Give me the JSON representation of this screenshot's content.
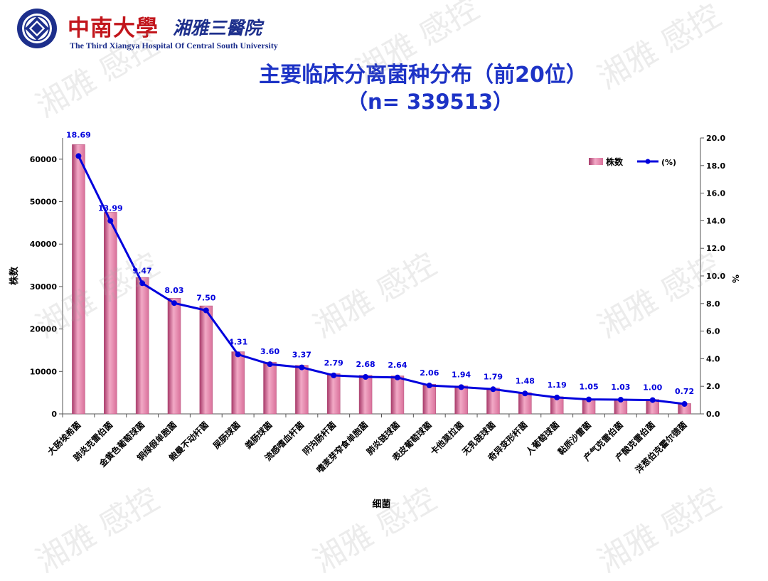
{
  "header": {
    "hospital_name_cn": "中南大學",
    "hospital_name_cn2": "湘雅三醫院",
    "hospital_name_en": "The Third Xiangya Hospital Of Central South University",
    "title": "主要临床分离菌种分布（前20位）",
    "subtitle": "（n= 339513）"
  },
  "watermark": "湘雅 感控",
  "colors": {
    "bar": "#d9709a",
    "line": "#0000dd",
    "title": "#1d33c6",
    "brand_red": "#c2161c",
    "brand_blue": "#1d2f8c"
  },
  "chart_data": {
    "type": "bar",
    "categories": [
      "大肠埃希菌",
      "肺炎克雷伯菌",
      "金黄色葡萄球菌",
      "铜绿假单胞菌",
      "鲍曼不动杆菌",
      "屎肠球菌",
      "粪肠球菌",
      "流感嗜血杆菌",
      "阴沟肠杆菌",
      "嗜麦芽窄食单胞菌",
      "肺炎链球菌",
      "表皮葡萄球菌",
      "卡他莫拉菌",
      "无乳链球菌",
      "奇异变形杆菌",
      "人葡萄球菌",
      "黏质沙雷菌",
      "产气克雷伯菌",
      "产酸克雷伯菌",
      "洋葱伯克霍尔德菌"
    ],
    "series": [
      {
        "name": "株数",
        "axis": "left",
        "type": "bar",
        "values": [
          63450,
          47500,
          32150,
          27250,
          25450,
          14650,
          12200,
          11450,
          9480,
          9100,
          8950,
          7000,
          6600,
          6080,
          5020,
          4040,
          3560,
          3500,
          3400,
          2440
        ]
      },
      {
        "name": "(%)",
        "axis": "right",
        "type": "line",
        "values": [
          18.69,
          13.99,
          9.47,
          8.03,
          7.5,
          4.31,
          3.6,
          3.37,
          2.79,
          2.68,
          2.64,
          2.06,
          1.94,
          1.79,
          1.48,
          1.19,
          1.05,
          1.03,
          1.0,
          0.72
        ]
      }
    ],
    "xlabel": "细菌",
    "ylabel": "株数",
    "y2label": "%",
    "ylim": [
      0,
      65000
    ],
    "y2lim": [
      0,
      20
    ],
    "yticks": [
      "0",
      "10000",
      "20000",
      "30000",
      "40000",
      "50000",
      "60000"
    ],
    "y2ticks": [
      "0.0",
      "2.0",
      "4.0",
      "6.0",
      "8.0",
      "10.0",
      "12.0",
      "14.0",
      "16.0",
      "18.0",
      "20.0"
    ],
    "legend": {
      "bar_label": "株数",
      "line_label": "(%)",
      "position": "top-right"
    },
    "grid": false
  }
}
